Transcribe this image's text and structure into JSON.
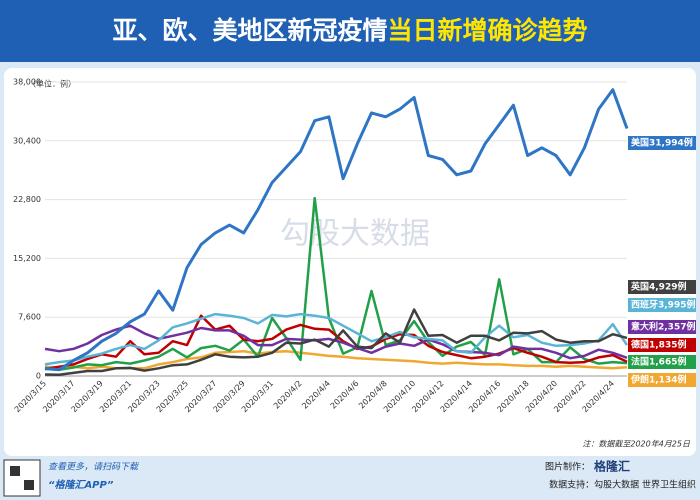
{
  "chart_data": {
    "type": "line",
    "title": "亚、欧、美地区新冠疫情",
    "title_highlight": "当日新增确诊趋势",
    "y_label": "（单位：例）",
    "note": "注：数据截至2020年4月25日",
    "watermark": "勾股大数据",
    "categories": [
      "2020/3/15",
      null,
      "2020/3/17",
      null,
      "2020/3/19",
      null,
      "2020/3/21",
      null,
      "2020/3/23",
      null,
      "2020/3/25",
      null,
      "2020/3/27",
      null,
      "2020/3/29",
      null,
      "2020/3/31",
      null,
      "2020/4/2",
      null,
      "2020/4/4",
      null,
      "2020/4/6",
      null,
      "2020/4/8",
      null,
      "2020/4/10",
      null,
      "2020/4/12",
      null,
      "2020/4/14",
      null,
      "2020/4/16",
      null,
      "2020/4/18",
      null,
      "2020/4/20",
      null,
      "2020/4/22",
      null,
      "2020/4/24",
      null
    ],
    "ylim": [
      0,
      38000
    ],
    "yticks": [
      0,
      {
        "value": 7600,
        "label": "7,600"
      },
      {
        "value": 15200,
        "label": "15,200"
      },
      {
        "value": 22800,
        "label": "22,800"
      },
      {
        "value": 30400,
        "label": "30,400"
      },
      {
        "value": 38000,
        "label": "38,000"
      }
    ],
    "grid": true,
    "series": [
      {
        "name": "伊朗",
        "end_label": "伊朗1,134例",
        "color": "#f0a830",
        "values": [
          1200,
          1100,
          1200,
          1000,
          1200,
          1000,
          1000,
          1000,
          1500,
          1800,
          2200,
          2400,
          3000,
          3100,
          3200,
          2900,
          3100,
          3200,
          3000,
          2800,
          2600,
          2500,
          2300,
          2200,
          2100,
          2000,
          1900,
          1700,
          1600,
          1700,
          1600,
          1500,
          1500,
          1400,
          1300,
          1300,
          1200,
          1300,
          1200,
          1100,
          1000,
          1134
        ]
      },
      {
        "name": "法国",
        "end_label": "法国1,665例",
        "color": "#22a049",
        "values": [
          900,
          800,
          1100,
          1500,
          1400,
          1800,
          1600,
          2000,
          2500,
          3500,
          2400,
          3600,
          3900,
          3300,
          4700,
          2500,
          7500,
          4900,
          2100,
          23000,
          7500,
          2900,
          3700,
          11000,
          4000,
          4600,
          7100,
          4400,
          2600,
          3800,
          4400,
          2700,
          12500,
          2800,
          3500,
          1800,
          1800,
          3700,
          2200,
          1600,
          1800,
          1665
        ]
      },
      {
        "name": "德国",
        "end_label": "德国1,835例",
        "color": "#c00000",
        "values": [
          900,
          1200,
          1500,
          2200,
          2800,
          2500,
          4500,
          2800,
          3000,
          4500,
          4000,
          7800,
          6000,
          6500,
          4700,
          4500,
          4800,
          6000,
          6600,
          6100,
          6000,
          4500,
          3500,
          3800,
          4800,
          5400,
          5300,
          3900,
          3100,
          2700,
          2300,
          2500,
          2900,
          3600,
          3000,
          2500,
          1800,
          1700,
          1800,
          2400,
          2700,
          1835
        ]
      },
      {
        "name": "意大利",
        "end_label": "意大利2,357例",
        "color": "#7030a0",
        "values": [
          3500,
          3200,
          3500,
          4200,
          5300,
          6000,
          6500,
          5500,
          4800,
          5200,
          5600,
          6200,
          5900,
          5900,
          5200,
          4000,
          4000,
          4800,
          4700,
          4600,
          4800,
          4300,
          3600,
          3000,
          3800,
          4200,
          3900,
          4700,
          4100,
          3200,
          3100,
          3000,
          2700,
          3800,
          3500,
          3500,
          3000,
          2300,
          2600,
          3400,
          3000,
          2357
        ]
      },
      {
        "name": "西班牙",
        "end_label": "西班牙3,995例",
        "color": "#5ab4d6",
        "values": [
          1500,
          1800,
          2000,
          2500,
          2900,
          3500,
          4000,
          3500,
          4600,
          6300,
          6800,
          7400,
          8000,
          7800,
          7500,
          6800,
          7900,
          7700,
          8000,
          7800,
          7500,
          6500,
          5500,
          4500,
          5000,
          5700,
          5000,
          4800,
          4600,
          3200,
          3000,
          5000,
          6500,
          5000,
          5300,
          4300,
          3900,
          4000,
          4200,
          4600,
          6700,
          3995
        ]
      },
      {
        "name": "英国",
        "end_label": "英国4,929例",
        "color": "#404040",
        "values": [
          200,
          150,
          400,
          650,
          650,
          1000,
          1050,
          700,
          1000,
          1400,
          1500,
          2100,
          2800,
          2500,
          2400,
          2500,
          3000,
          4300,
          4200,
          4700,
          3800,
          5900,
          3800,
          3600,
          5500,
          4300,
          8600,
          5200,
          5300,
          4300,
          5200,
          5200,
          4600,
          5600,
          5500,
          5800,
          4700,
          4300,
          4500,
          4500,
          5400,
          4929
        ]
      },
      {
        "name": "美国",
        "end_label": "美国31,994例",
        "color": "#2e75c6",
        "values": [
          1000,
          800,
          2000,
          3000,
          4500,
          5500,
          7000,
          8000,
          11000,
          8500,
          14000,
          17000,
          18500,
          19500,
          18500,
          21500,
          25000,
          27000,
          29000,
          33000,
          33500,
          25500,
          30000,
          34000,
          33500,
          34500,
          36000,
          28500,
          28000,
          26000,
          26500,
          30000,
          32500,
          35000,
          28500,
          29500,
          28500,
          26000,
          29500,
          34500,
          37000,
          31994
        ]
      }
    ]
  },
  "footer": {
    "scan_hint": "查看更多，请扫码下载",
    "app": "“格隆汇APP”",
    "made_by": "图片制作：",
    "brand": "格隆汇",
    "source": "数据支持：勾股大数据 世界卫生组织"
  }
}
